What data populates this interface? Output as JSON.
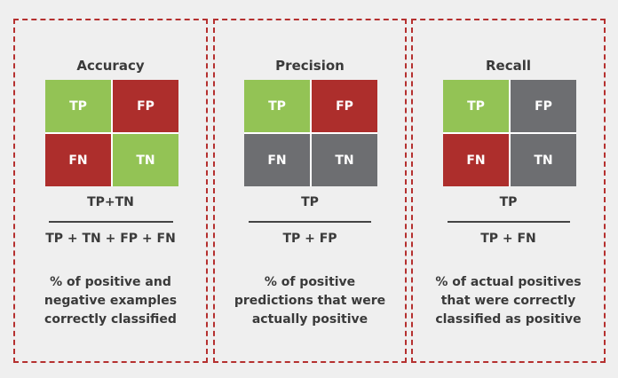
{
  "colors": {
    "positive": "#93c355",
    "negative": "#ad2e2c",
    "neutral": "#6d6e71",
    "border": "#b5302f"
  },
  "panels": [
    {
      "title": "Accuracy",
      "cells": [
        {
          "label": "TP",
          "role": "positive"
        },
        {
          "label": "FP",
          "role": "negative"
        },
        {
          "label": "FN",
          "role": "negative"
        },
        {
          "label": "TN",
          "role": "positive"
        }
      ],
      "numerator": "TP+TN",
      "denominator": "TP + TN + FP + FN",
      "description": [
        "% of positive and",
        "negative examples",
        "correctly classified"
      ]
    },
    {
      "title": "Precision",
      "cells": [
        {
          "label": "TP",
          "role": "positive"
        },
        {
          "label": "FP",
          "role": "negative"
        },
        {
          "label": "FN",
          "role": "neutral"
        },
        {
          "label": "TN",
          "role": "neutral"
        }
      ],
      "numerator": "TP",
      "denominator": "TP + FP",
      "description": [
        "% of positive",
        "predictions that were",
        "actually positive"
      ]
    },
    {
      "title": "Recall",
      "cells": [
        {
          "label": "TP",
          "role": "positive"
        },
        {
          "label": "FP",
          "role": "neutral"
        },
        {
          "label": "FN",
          "role": "negative"
        },
        {
          "label": "TN",
          "role": "neutral"
        }
      ],
      "numerator": "TP",
      "denominator": "TP + FN",
      "description": [
        "% of actual positives",
        "that were correctly",
        "classified as positive"
      ]
    }
  ]
}
